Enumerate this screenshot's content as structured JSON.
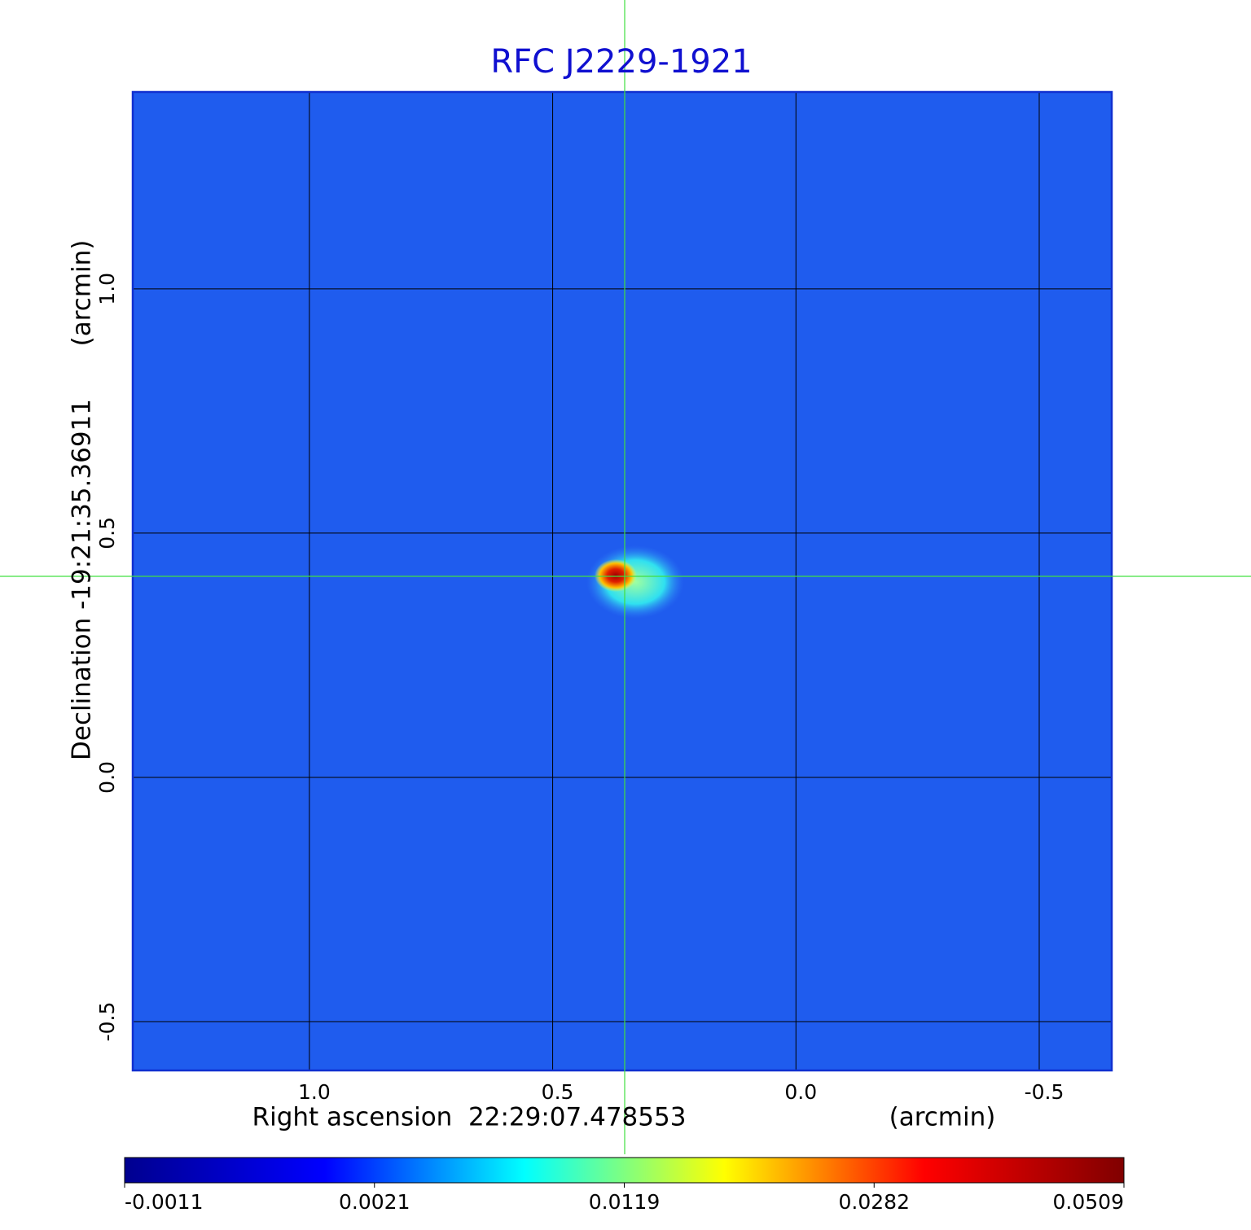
{
  "chart_data": {
    "type": "image",
    "title": "RFC J2229-1921",
    "x_label": "Right ascension  22:29:07.478553",
    "x_unit": "(arcmin)",
    "y_label": "Declination -19:21:35.36911",
    "y_unit": "(arcmin)",
    "xlim": [
      1.363,
      -0.649
    ],
    "ylim": [
      -0.6,
      1.403
    ],
    "xticks": [
      {
        "value": 1,
        "label": "1.0"
      },
      0.5,
      {
        "value": 0,
        "label": "0.0"
      },
      -0.5
    ],
    "yticks": [
      -0.5,
      {
        "value": 0,
        "label": "0.0"
      },
      0.5,
      {
        "value": 1,
        "label": "1.0"
      }
    ],
    "grid": true,
    "colorbar_ticks": [
      -0.0011,
      0.0021,
      0.0119,
      0.0282,
      0.0509
    ],
    "colormap": [
      "#00008f",
      "#0000ff",
      "#00ffff",
      "#ffff00",
      "#ff0000",
      "#800000"
    ]
  }
}
